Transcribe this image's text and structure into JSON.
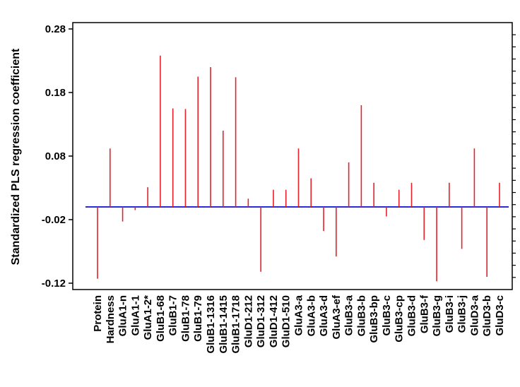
{
  "chart_data": {
    "type": "bar",
    "title": "",
    "xlabel": "",
    "ylabel": "Standardized PLS regression coefficient",
    "ylim": [
      -0.13,
      0.29
    ],
    "yticks": [
      -0.12,
      -0.02,
      0.08,
      0.18,
      0.28
    ],
    "ytick_labels": [
      "-0.12",
      "-0.02",
      "0.08",
      "0.18",
      "0.28"
    ],
    "baseline": 0,
    "bar_color": "#e8202a",
    "baseline_color": "#2b2bd9",
    "categories": [
      "Protein",
      "Hardness",
      "GluA1-n",
      "GluA1-1",
      "GluA1-2*",
      "GluB1-68",
      "GluB1-7",
      "GluB1-78",
      "GluB1-79",
      "GluB1-1316",
      "GluB1-1415",
      "GluB1-1718",
      "GluD1-212",
      "GluD1-312",
      "GluD1-412",
      "GluD1-510",
      "GluA3-a",
      "GluA3-b",
      "GluA3-d",
      "GluA3-ef",
      "GluB3-a",
      "GluB3-b",
      "GluB3-bp",
      "GluB3-c",
      "GluB3-cp",
      "GluB3-d",
      "GluB3-f",
      "GluB3-g",
      "GluB3-i",
      "GluB3-j",
      "GluD3-a",
      "GluD3-b",
      "GluD3-c"
    ],
    "values": [
      -0.113,
      0.092,
      -0.023,
      -0.005,
      0.031,
      0.238,
      0.155,
      0.154,
      0.205,
      0.22,
      0.12,
      0.204,
      0.013,
      -0.102,
      0.027,
      0.027,
      0.092,
      0.045,
      -0.038,
      -0.078,
      0.07,
      0.16,
      0.038,
      -0.015,
      0.027,
      0.038,
      -0.052,
      -0.117,
      0.038,
      -0.066,
      0.092,
      -0.11,
      0.038
    ]
  }
}
